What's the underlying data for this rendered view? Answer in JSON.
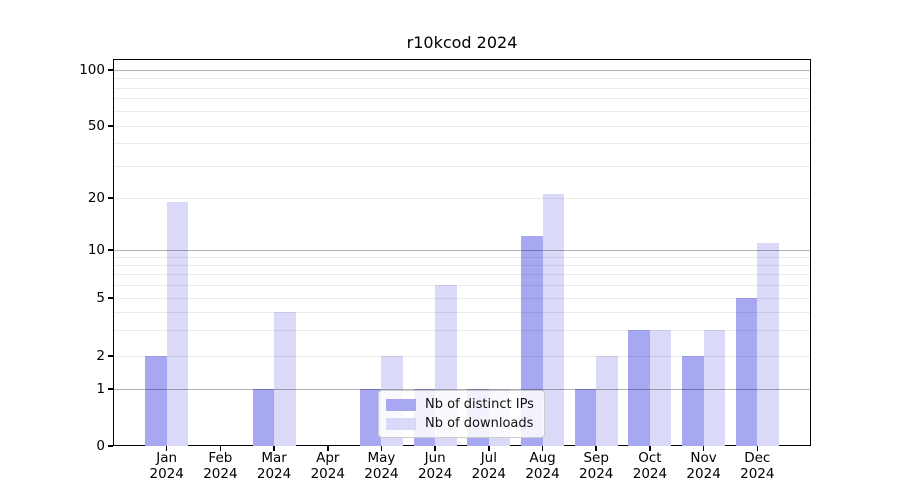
{
  "title": "r10kcod 2024",
  "chart_data": {
    "type": "bar",
    "title": "r10kcod 2024",
    "categories": [
      "Jan",
      "Feb",
      "Mar",
      "Apr",
      "May",
      "Jun",
      "Jul",
      "Aug",
      "Sep",
      "Oct",
      "Nov",
      "Dec"
    ],
    "category_year": "2024",
    "series": [
      {
        "name": "Nb of distinct IPs",
        "color": "#a7a7f2",
        "values": [
          2,
          0,
          1,
          0,
          1,
          1,
          1,
          12,
          1,
          3,
          2,
          5
        ]
      },
      {
        "name": "Nb of downloads",
        "color": "#dadaf8",
        "values": [
          19,
          0,
          4,
          0,
          2,
          6,
          1,
          21,
          2,
          3,
          3,
          11
        ]
      }
    ],
    "xlabel": "",
    "ylabel": "",
    "y_axis": {
      "scale": "linear 0-1, logarithmic above 1",
      "tick_values": [
        0,
        1,
        2,
        5,
        10,
        20,
        50,
        100
      ],
      "tick_labels": [
        "0",
        "1",
        "2",
        "5",
        "10",
        "20",
        "50",
        "100"
      ],
      "major_gridlines": [
        1,
        10,
        100
      ],
      "minor_gridlines": [
        2,
        3,
        4,
        5,
        6,
        7,
        8,
        9,
        20,
        30,
        40,
        50,
        60,
        70,
        80,
        90
      ]
    },
    "ylim": [
      0,
      115
    ],
    "grid": true,
    "legend_position": "inside bottom-center"
  },
  "legend": {
    "items": [
      {
        "label": "Nb of distinct IPs",
        "color": "#a7a7f2"
      },
      {
        "label": "Nb of downloads",
        "color": "#dadaf8"
      }
    ]
  },
  "colors": {
    "bar_distinct_ips": "#a7a7f2",
    "bar_downloads": "#dadaf8",
    "grid_major": "rgba(0,0,0,0.30)",
    "grid_minor": "rgba(0,0,0,0.08)",
    "spine": "#000000",
    "text": "#000000",
    "legend_border": "#cccccc"
  }
}
